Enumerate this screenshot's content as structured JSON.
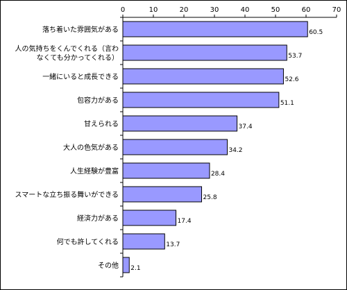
{
  "chart_data": {
    "type": "bar",
    "orientation": "horizontal",
    "title": "",
    "xlabel": "",
    "ylabel": "",
    "xlim": [
      0,
      70
    ],
    "xticks": [
      0,
      10,
      20,
      30,
      40,
      50,
      60,
      70
    ],
    "grid": false,
    "legend": "none",
    "categories": [
      [
        "落ち着いた雰囲気がある"
      ],
      [
        "人の気持ちをくんでくれる（言わ",
        "なくても分かってくれる）"
      ],
      [
        "一緒にいると成長できる"
      ],
      [
        "包容力がある"
      ],
      [
        "甘えられる"
      ],
      [
        "大人の色気がある"
      ],
      [
        "人生経験が豊富"
      ],
      [
        "スマートな立ち振る舞いができる"
      ],
      [
        "経済力がある"
      ],
      [
        "何でも許してくれる"
      ],
      [
        "その他"
      ]
    ],
    "values": [
      60.5,
      53.7,
      52.6,
      51.1,
      37.4,
      34.2,
      28.4,
      25.8,
      17.4,
      13.7,
      2.1
    ],
    "value_labels": [
      "60.5",
      "53.7",
      "52.6",
      "51.1",
      "37.4",
      "34.2",
      "28.4",
      "25.8",
      "17.4",
      "13.7",
      "2.1"
    ],
    "colors": {
      "bar_fill": "#9999ff",
      "bar_stroke": "#000000",
      "axis": "#000000"
    }
  }
}
